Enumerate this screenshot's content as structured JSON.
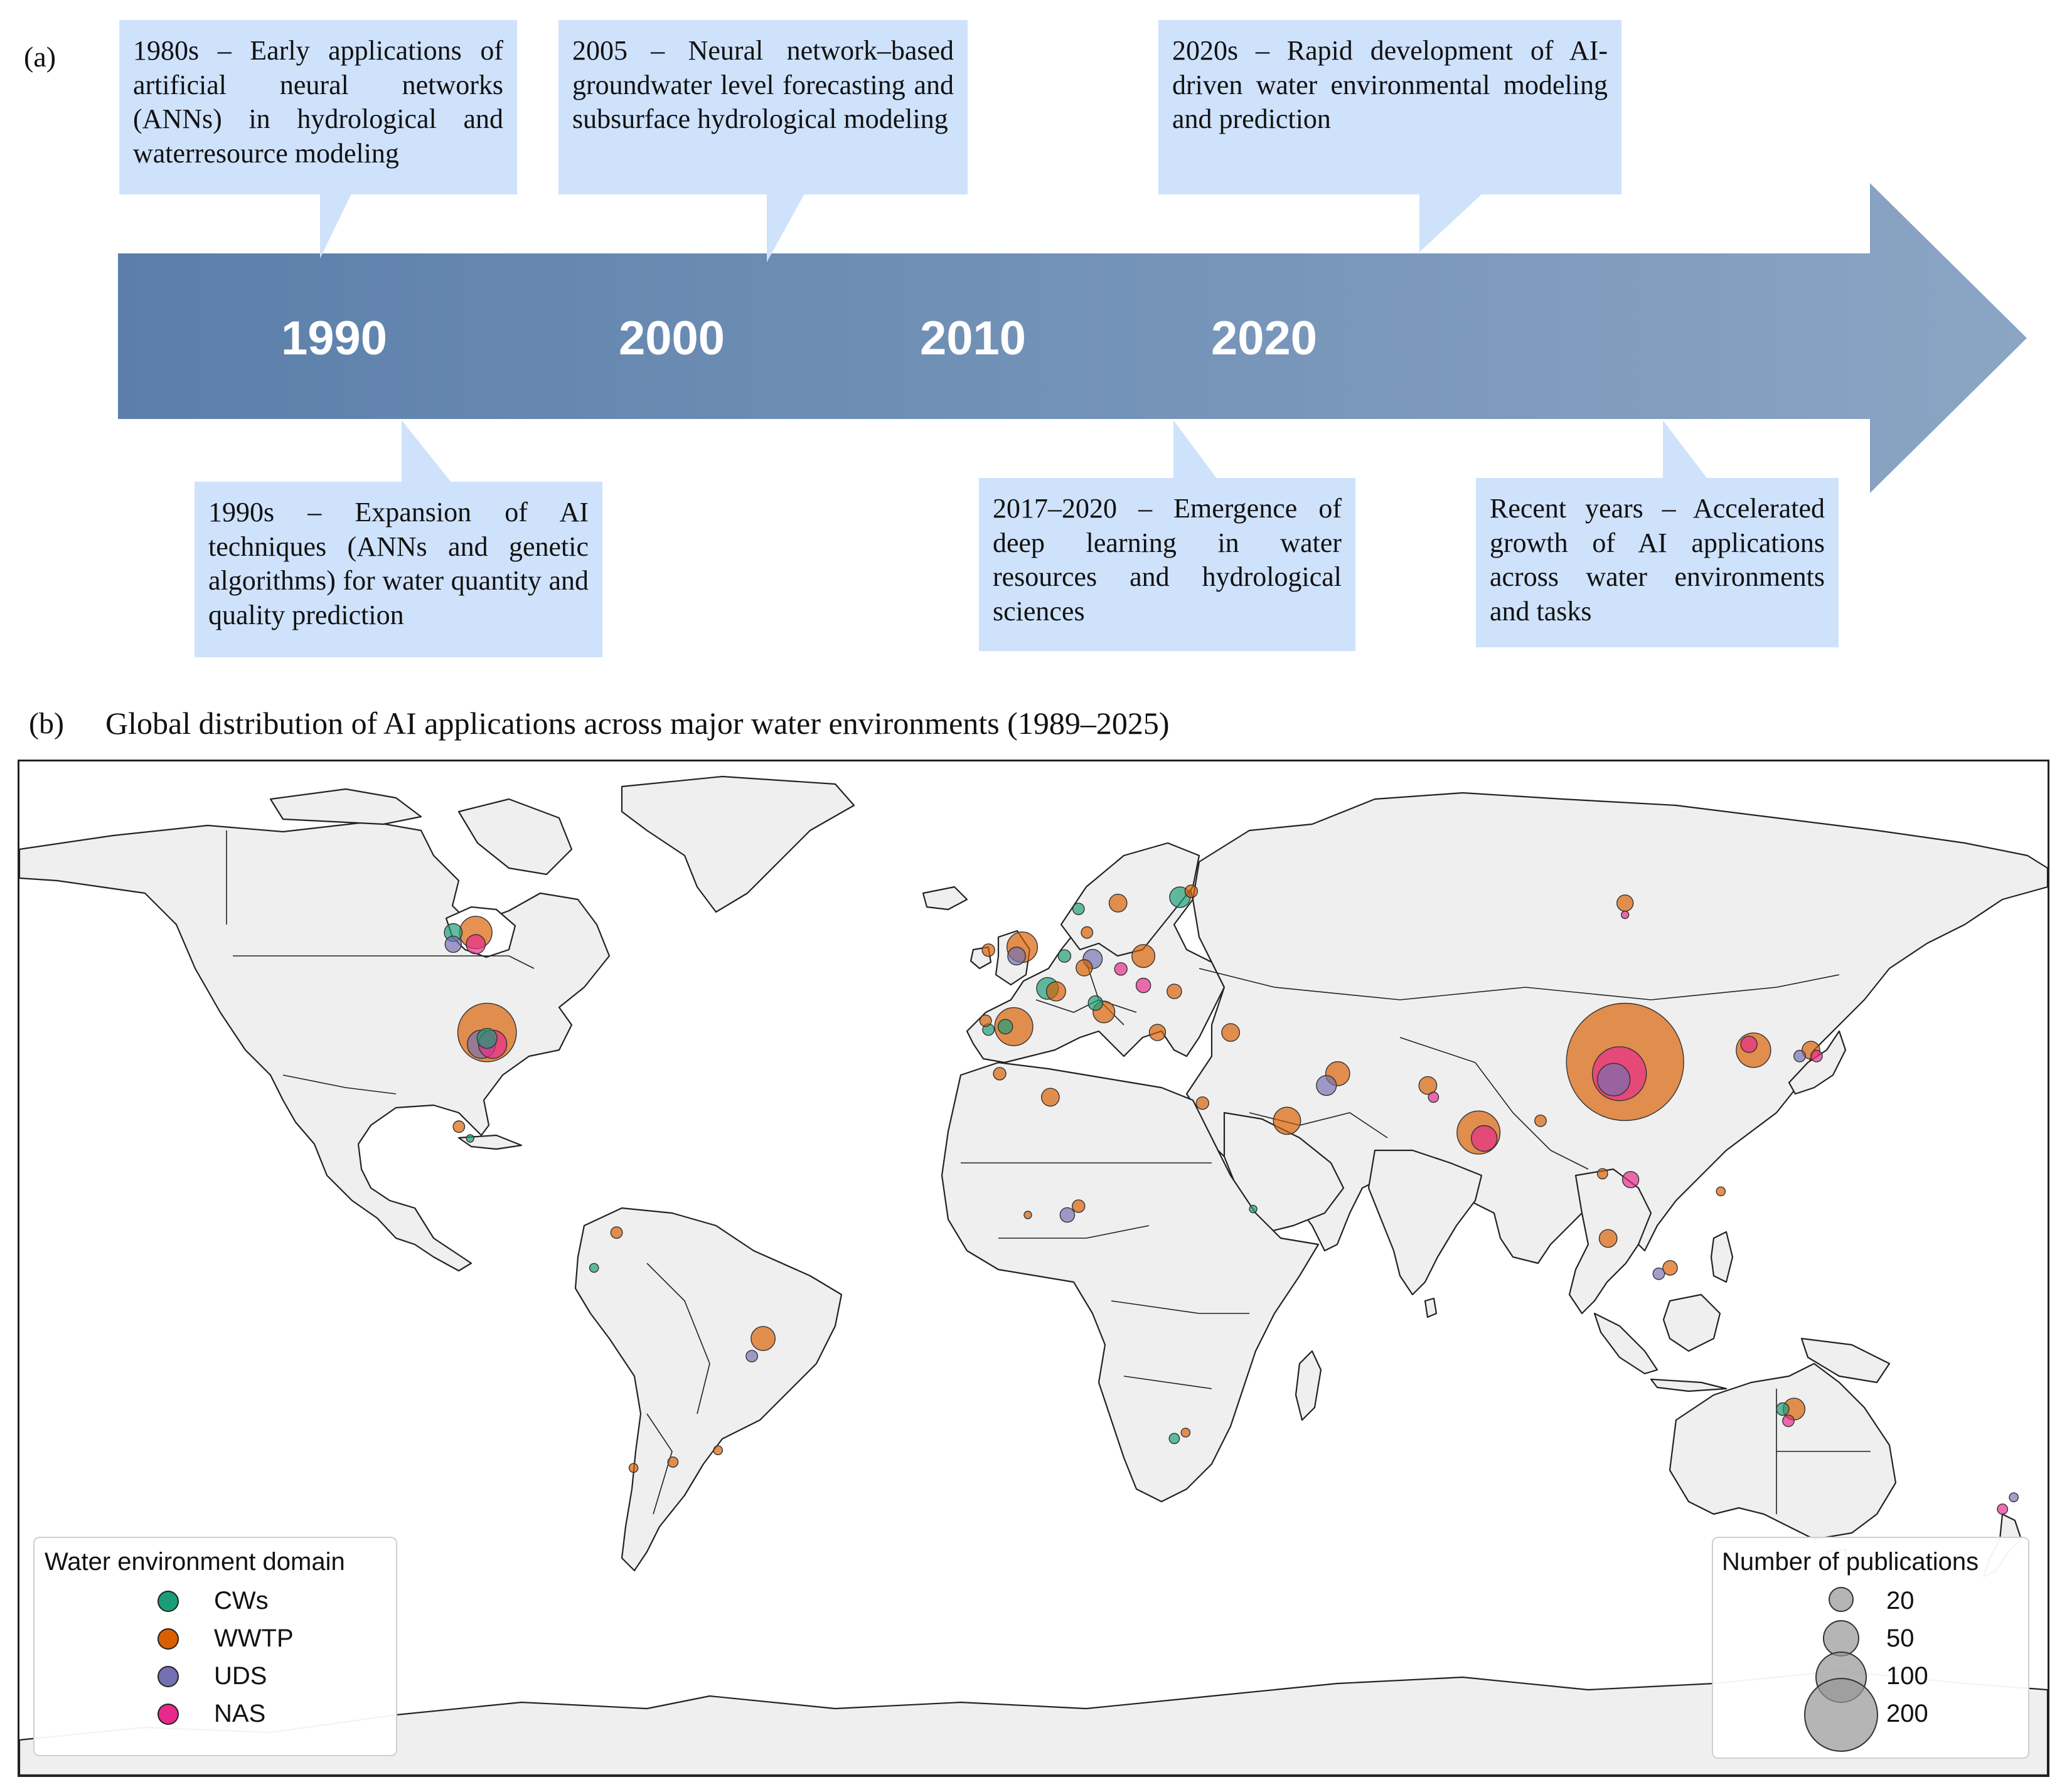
{
  "panel_a": {
    "label": "(a)",
    "years": [
      "1990",
      "2000",
      "2010",
      "2020"
    ],
    "callouts": [
      {
        "id": "c1980",
        "text": "1980s – Early applications of artificial neural networks (ANNs) in hydrological and waterresource modeling"
      },
      {
        "id": "c2005",
        "text": "2005 – Neural network–based groundwater level forecasting and subsurface hydrological modeling"
      },
      {
        "id": "c2020s",
        "text": "2020s – Rapid development of AI-driven water environmental modeling and prediction"
      },
      {
        "id": "c1990s",
        "text": "1990s – Expansion of AI techniques (ANNs and genetic algorithms) for water quantity and quality prediction"
      },
      {
        "id": "c2017",
        "text": "2017–2020 – Emergence of deep learning in water resources and hydrological sciences"
      },
      {
        "id": "crecent",
        "text": "Recent years – Accelerated growth of AI applications across water environments and tasks"
      }
    ],
    "colors": {
      "callout_bg": "#cfe2fb",
      "arrow_start": "#5b7faa",
      "arrow_end": "#8ba5c4"
    }
  },
  "panel_b": {
    "label": "(b)",
    "title": "Global distribution of  AI applications across major water environments (1989–2025)",
    "legend_domain": {
      "title": "Water environment domain",
      "items": [
        {
          "label": "CWs",
          "color": "#1b9e77"
        },
        {
          "label": "WWTP",
          "color": "#d95f02"
        },
        {
          "label": "UDS",
          "color": "#7570b3"
        },
        {
          "label": "NAS",
          "color": "#e7298a"
        }
      ]
    },
    "legend_size": {
      "title": "Number of publications",
      "items": [
        {
          "label": "20",
          "value": 20
        },
        {
          "label": "50",
          "value": 50
        },
        {
          "label": "100",
          "value": 100
        },
        {
          "label": "200",
          "value": 200
        }
      ]
    },
    "map": {
      "land_color": "#efefef",
      "border_color": "#222222",
      "ocean_color": "#ffffff"
    },
    "points": [
      {
        "region": "China",
        "lon": 105,
        "lat": 34,
        "domain": "WWTP",
        "value": 520
      },
      {
        "region": "China",
        "lon": 104,
        "lat": 32,
        "domain": "NAS",
        "value": 110
      },
      {
        "region": "China",
        "lon": 103,
        "lat": 31,
        "domain": "UDS",
        "value": 40
      },
      {
        "region": "USA",
        "lon": -97,
        "lat": 39,
        "domain": "WWTP",
        "value": 130
      },
      {
        "region": "USA",
        "lon": -98,
        "lat": 37,
        "domain": "UDS",
        "value": 30
      },
      {
        "region": "USA",
        "lon": -96,
        "lat": 37,
        "domain": "NAS",
        "value": 30
      },
      {
        "region": "USA",
        "lon": -97,
        "lat": 38,
        "domain": "CWs",
        "value": 15
      },
      {
        "region": "Canada",
        "lon": -99,
        "lat": 56,
        "domain": "WWTP",
        "value": 40
      },
      {
        "region": "Canada",
        "lon": -103,
        "lat": 56,
        "domain": "CWs",
        "value": 12
      },
      {
        "region": "Canada",
        "lon": -103,
        "lat": 54,
        "domain": "UDS",
        "value": 10
      },
      {
        "region": "Canada",
        "lon": -99,
        "lat": 54,
        "domain": "NAS",
        "value": 14
      },
      {
        "region": "India",
        "lon": 79,
        "lat": 22,
        "domain": "WWTP",
        "value": 70
      },
      {
        "region": "India",
        "lon": 80,
        "lat": 21,
        "domain": "NAS",
        "value": 25
      },
      {
        "region": "Iran",
        "lon": 54,
        "lat": 32,
        "domain": "WWTP",
        "value": 22
      },
      {
        "region": "Iran",
        "lon": 52,
        "lat": 30,
        "domain": "UDS",
        "value": 15
      },
      {
        "region": "Saudi Arabia",
        "lon": 45,
        "lat": 24,
        "domain": "WWTP",
        "value": 28
      },
      {
        "region": "Spain",
        "lon": -3.5,
        "lat": 40,
        "domain": "WWTP",
        "value": 55
      },
      {
        "region": "Spain",
        "lon": -5,
        "lat": 40,
        "domain": "CWs",
        "value": 8
      },
      {
        "region": "France",
        "lon": 2.5,
        "lat": 46.5,
        "domain": "CWs",
        "value": 18
      },
      {
        "region": "France",
        "lon": 4,
        "lat": 46,
        "domain": "WWTP",
        "value": 14
      },
      {
        "region": "UK",
        "lon": -2,
        "lat": 53.5,
        "domain": "WWTP",
        "value": 35
      },
      {
        "region": "UK",
        "lon": -3,
        "lat": 52,
        "domain": "UDS",
        "value": 12
      },
      {
        "region": "Ireland",
        "lon": -8,
        "lat": 53,
        "domain": "WWTP",
        "value": 6
      },
      {
        "region": "Germany",
        "lon": 10.5,
        "lat": 51.5,
        "domain": "UDS",
        "value": 14
      },
      {
        "region": "Germany",
        "lon": 9,
        "lat": 50,
        "domain": "WWTP",
        "value": 10
      },
      {
        "region": "Netherlands",
        "lon": 5.5,
        "lat": 52,
        "domain": "CWs",
        "value": 6
      },
      {
        "region": "Italy",
        "lon": 12.5,
        "lat": 42.5,
        "domain": "WWTP",
        "value": 18
      },
      {
        "region": "Italy",
        "lon": 11,
        "lat": 44,
        "domain": "CWs",
        "value": 8
      },
      {
        "region": "Poland",
        "lon": 19.5,
        "lat": 52,
        "domain": "WWTP",
        "value": 20
      },
      {
        "region": "Czechia",
        "lon": 15.5,
        "lat": 49.8,
        "domain": "NAS",
        "value": 6
      },
      {
        "region": "Hungary",
        "lon": 19.5,
        "lat": 47,
        "domain": "NAS",
        "value": 8
      },
      {
        "region": "Sweden",
        "lon": 15,
        "lat": 61,
        "domain": "WWTP",
        "value": 12
      },
      {
        "region": "Finland",
        "lon": 26,
        "lat": 62,
        "domain": "CWs",
        "value": 16
      },
      {
        "region": "Finland",
        "lon": 28,
        "lat": 63,
        "domain": "WWTP",
        "value": 6
      },
      {
        "region": "Norway",
        "lon": 8,
        "lat": 60,
        "domain": "CWs",
        "value": 5
      },
      {
        "region": "Denmark",
        "lon": 9.5,
        "lat": 56,
        "domain": "WWTP",
        "value": 5
      },
      {
        "region": "Greece",
        "lon": 22,
        "lat": 39,
        "domain": "WWTP",
        "value": 10
      },
      {
        "region": "Turkey",
        "lon": 35,
        "lat": 39,
        "domain": "WWTP",
        "value": 12
      },
      {
        "region": "Romania",
        "lon": 25,
        "lat": 46,
        "domain": "WWTP",
        "value": 8
      },
      {
        "region": "Portugal",
        "lon": -8,
        "lat": 39.5,
        "domain": "CWs",
        "value": 5
      },
      {
        "region": "Portugal",
        "lon": -8.5,
        "lat": 41,
        "domain": "WWTP",
        "value": 5
      },
      {
        "region": "Russia",
        "lon": 105,
        "lat": 61,
        "domain": "WWTP",
        "value": 10
      },
      {
        "region": "Russia",
        "lon": 105,
        "lat": 59,
        "domain": "NAS",
        "value": 2
      },
      {
        "region": "South Korea",
        "lon": 127.8,
        "lat": 36,
        "domain": "WWTP",
        "value": 45
      },
      {
        "region": "South Korea",
        "lon": 127,
        "lat": 37,
        "domain": "NAS",
        "value": 10
      },
      {
        "region": "Japan",
        "lon": 138,
        "lat": 36,
        "domain": "WWTP",
        "value": 12
      },
      {
        "region": "Japan",
        "lon": 139,
        "lat": 35,
        "domain": "NAS",
        "value": 5
      },
      {
        "region": "Japan",
        "lon": 136,
        "lat": 35,
        "domain": "UDS",
        "value": 5
      },
      {
        "region": "Vietnam",
        "lon": 106,
        "lat": 14,
        "domain": "NAS",
        "value": 10
      },
      {
        "region": "Thailand",
        "lon": 101,
        "lat": 15,
        "domain": "WWTP",
        "value": 4
      },
      {
        "region": "Malaysia",
        "lon": 102,
        "lat": 4,
        "domain": "WWTP",
        "value": 12
      },
      {
        "region": "Indonesia",
        "lon": 113,
        "lat": -1,
        "domain": "WWTP",
        "value": 8
      },
      {
        "region": "Indonesia",
        "lon": 111,
        "lat": -2,
        "domain": "UDS",
        "value": 5
      },
      {
        "region": "Philippines",
        "lon": 122,
        "lat": 12,
        "domain": "WWTP",
        "value": 3
      },
      {
        "region": "Pakistan",
        "lon": 70,
        "lat": 30,
        "domain": "WWTP",
        "value": 12
      },
      {
        "region": "Pakistan",
        "lon": 71,
        "lat": 28,
        "domain": "NAS",
        "value": 4
      },
      {
        "region": "Bangladesh",
        "lon": 90,
        "lat": 24,
        "domain": "WWTP",
        "value": 5
      },
      {
        "region": "Egypt",
        "lon": 30,
        "lat": 27,
        "domain": "WWTP",
        "value": 6
      },
      {
        "region": "Morocco",
        "lon": -6,
        "lat": 32,
        "domain": "WWTP",
        "value": 6
      },
      {
        "region": "Algeria",
        "lon": 3,
        "lat": 28,
        "domain": "WWTP",
        "value": 12
      },
      {
        "region": "Nigeria",
        "lon": 8,
        "lat": 9.5,
        "domain": "WWTP",
        "value": 6
      },
      {
        "region": "Nigeria",
        "lon": 6,
        "lat": 8,
        "domain": "UDS",
        "value": 8
      },
      {
        "region": "Ghana",
        "lon": -1,
        "lat": 8,
        "domain": "WWTP",
        "value": 2
      },
      {
        "region": "Ethiopia",
        "lon": 39,
        "lat": 9,
        "domain": "CWs",
        "value": 2
      },
      {
        "region": "South Africa",
        "lon": 25,
        "lat": -30,
        "domain": "CWs",
        "value": 4
      },
      {
        "region": "South Africa",
        "lon": 27,
        "lat": -29,
        "domain": "WWTP",
        "value": 3
      },
      {
        "region": "Brazil",
        "lon": -48,
        "lat": -13,
        "domain": "WWTP",
        "value": 22
      },
      {
        "region": "Brazil",
        "lon": -50,
        "lat": -16,
        "domain": "UDS",
        "value": 5
      },
      {
        "region": "Colombia",
        "lon": -74,
        "lat": 5,
        "domain": "WWTP",
        "value": 5
      },
      {
        "region": "Ecuador",
        "lon": -78,
        "lat": -1,
        "domain": "CWs",
        "value": 3
      },
      {
        "region": "Argentina",
        "lon": -64,
        "lat": -34,
        "domain": "WWTP",
        "value": 4
      },
      {
        "region": "Chile",
        "lon": -71,
        "lat": -35,
        "domain": "WWTP",
        "value": 3
      },
      {
        "region": "Uruguay",
        "lon": -56,
        "lat": -32,
        "domain": "WWTP",
        "value": 3
      },
      {
        "region": "Mexico",
        "lon": -102,
        "lat": 23,
        "domain": "WWTP",
        "value": 5
      },
      {
        "region": "Mexico",
        "lon": -100,
        "lat": 21,
        "domain": "CWs",
        "value": 2
      },
      {
        "region": "Australia",
        "lon": 135,
        "lat": -25,
        "domain": "WWTP",
        "value": 18
      },
      {
        "region": "Australia",
        "lon": 133,
        "lat": -25,
        "domain": "CWs",
        "value": 6
      },
      {
        "region": "Australia",
        "lon": 134,
        "lat": -27,
        "domain": "NAS",
        "value": 5
      },
      {
        "region": "New Zealand",
        "lon": 172,
        "lat": -42,
        "domain": "NAS",
        "value": 4
      },
      {
        "region": "New Zealand",
        "lon": 174,
        "lat": -40,
        "domain": "UDS",
        "value": 3
      }
    ]
  }
}
